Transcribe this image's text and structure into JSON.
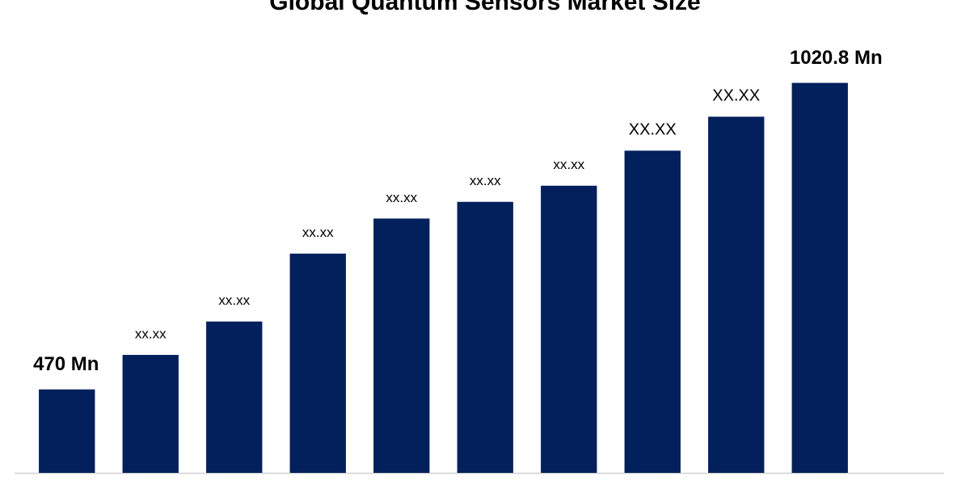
{
  "chart_data": {
    "type": "bar",
    "title": "Global Quantum Sensors Market Size",
    "categories": [
      null,
      null,
      null,
      null,
      null,
      null,
      null,
      null,
      null,
      null
    ],
    "values": [
      470,
      532,
      592,
      714,
      777,
      807,
      836,
      899,
      960,
      1020.8
    ],
    "value_labels": [
      "470 Mn",
      "xx.xx",
      "xx.xx",
      "xx.xx",
      "xx.xx",
      "xx.xx",
      "xx.xx",
      "XX.XX",
      "XX.XX",
      "1020.8 Mn"
    ],
    "color": "#02205b",
    "ylim": [
      320,
      1100
    ]
  }
}
